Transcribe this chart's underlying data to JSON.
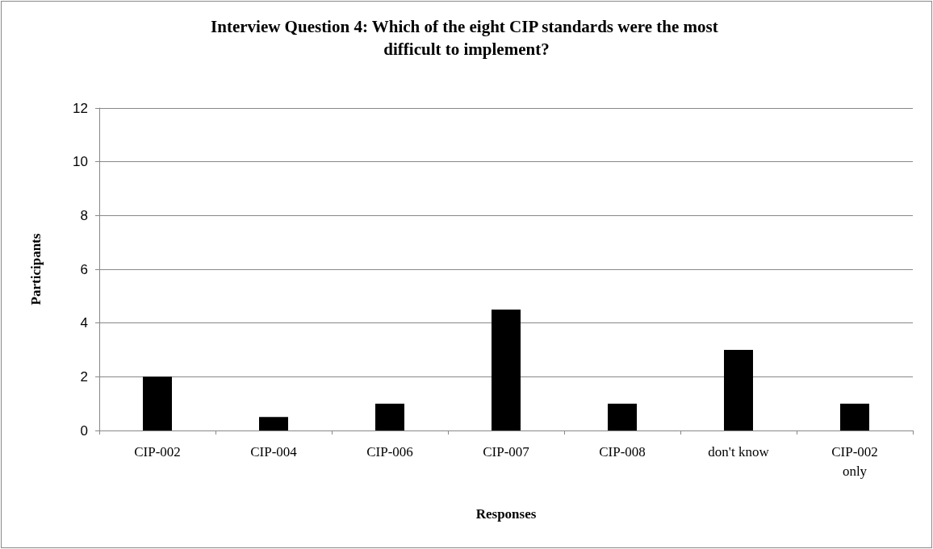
{
  "chart_data": {
    "type": "bar",
    "title": "Interview Question 4: Which of the eight CIP standards were the most difficult to implement?",
    "xlabel": "Responses",
    "ylabel": "Participants",
    "categories": [
      "CIP-002",
      "CIP-004",
      "CIP-006",
      "CIP-007",
      "CIP-008",
      "don't know",
      "CIP-002 only"
    ],
    "values": [
      2,
      0.5,
      1,
      4.5,
      1,
      3,
      1
    ],
    "color": "#000000",
    "ylim": [
      0,
      12
    ],
    "yticks": [
      0,
      2,
      4,
      6,
      8,
      10,
      12
    ],
    "grid": "y"
  }
}
